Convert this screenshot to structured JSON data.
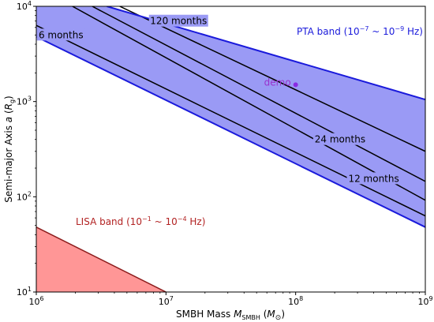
{
  "chart_data": {
    "type": "area",
    "x_scale": "log",
    "y_scale": "log",
    "xlim": [
      1000000,
      1000000000
    ],
    "ylim": [
      10,
      10000
    ],
    "xlabel": {
      "main": "SMBH Mass ",
      "var": "M",
      "sub": "SMBH",
      "unit_open": " (",
      "unit_var": "M",
      "unit_sub": "⊙",
      "unit_close": ")"
    },
    "ylabel": {
      "main": "Semi-major Axis ",
      "var": "a",
      "unit_open": " (",
      "unit_var": "R",
      "unit_sub": "g",
      "unit_close": ")"
    },
    "x_ticks": [
      {
        "value": 1000000,
        "base": "10",
        "exp": "6"
      },
      {
        "value": 10000000,
        "base": "10",
        "exp": "7"
      },
      {
        "value": 100000000,
        "base": "10",
        "exp": "8"
      },
      {
        "value": 1000000000,
        "base": "10",
        "exp": "9"
      }
    ],
    "y_ticks": [
      {
        "value": 10,
        "base": "10",
        "exp": "1"
      },
      {
        "value": 100,
        "base": "10",
        "exp": "2"
      },
      {
        "value": 1000,
        "base": "10",
        "exp": "3"
      },
      {
        "value": 10000,
        "base": "10",
        "exp": "4"
      }
    ],
    "pta_band": {
      "label_pre": "PTA band (10",
      "label_exp1": "−7",
      "label_mid": " ~ 10",
      "label_exp2": "−9",
      "label_post": " Hz)",
      "upper_line": [
        [
          3500000,
          10000
        ],
        [
          1000000000,
          1050
        ]
      ],
      "lower_line": [
        [
          1000000,
          4800
        ],
        [
          1000000000,
          48
        ]
      ],
      "fill_color": "#9a9af5",
      "edge_color": "#1a1adb"
    },
    "lisa_band": {
      "label_pre": "LISA band (10",
      "label_exp1": "−1",
      "label_mid": " ~ 10",
      "label_exp2": "−4",
      "label_post": " Hz)",
      "edge": [
        [
          1000000,
          48
        ],
        [
          10000000,
          10
        ]
      ],
      "fill_color": "#ff9696",
      "edge_color": "#8b1a1a",
      "label_color": "#b22222"
    },
    "period_lines": [
      {
        "points": [
          [
            1000000,
            6300
          ],
          [
            1000000000,
            63
          ]
        ]
      },
      {
        "points": [
          [
            1900000,
            10000
          ],
          [
            1000000000,
            92
          ]
        ]
      },
      {
        "points": [
          [
            2700000,
            10000
          ],
          [
            1000000000,
            145
          ]
        ]
      },
      {
        "points": [
          [
            4400000,
            10000
          ],
          [
            1000000000,
            300
          ]
        ]
      }
    ],
    "period_labels": [
      {
        "text": "6 months",
        "x": 1550000,
        "y": 5000
      },
      {
        "text": "120 months",
        "x": 12500000,
        "y": 7000
      },
      {
        "text": "24 months",
        "x": 220000000,
        "y": 400
      },
      {
        "text": "12 months",
        "x": 400000000,
        "y": 155
      }
    ],
    "demo_point": {
      "label": "demo",
      "x": 100000000,
      "y": 1500,
      "color": "#8a2be2",
      "label_color": "#9932cc"
    }
  }
}
